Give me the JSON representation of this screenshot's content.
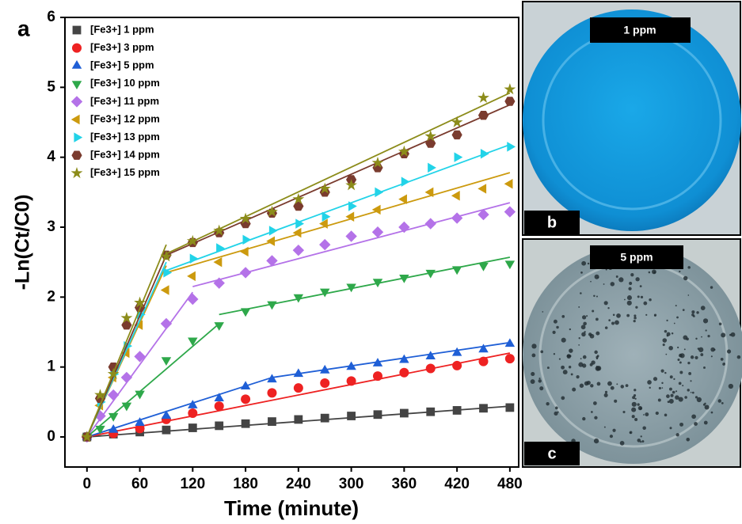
{
  "chart_data": {
    "type": "scatter",
    "panel": "a",
    "x_label": "Time (minute)",
    "y_label": "-Ln(Ct/C0)",
    "xlim": [
      -25,
      490
    ],
    "xticks": [
      0,
      60,
      120,
      180,
      240,
      300,
      360,
      420,
      480
    ],
    "ylim": [
      -0.43,
      6
    ],
    "yticks": [
      0,
      1,
      2,
      3,
      4,
      5,
      6
    ],
    "legend": "upper left",
    "series": [
      {
        "name": "[Fe3+] 1 ppm",
        "color": "#444444",
        "marker": "square",
        "x": [
          0,
          30,
          60,
          90,
          120,
          150,
          180,
          210,
          240,
          270,
          300,
          330,
          360,
          390,
          420,
          450,
          480
        ],
        "values": [
          0,
          0.04,
          0.07,
          0.1,
          0.13,
          0.16,
          0.19,
          0.22,
          0.25,
          0.27,
          0.3,
          0.32,
          0.34,
          0.36,
          0.38,
          0.41,
          0.42
        ],
        "fits": [
          {
            "x": [
              0,
              480
            ],
            "values": [
              0,
              0.44
            ]
          }
        ]
      },
      {
        "name": "[Fe3+] 3 ppm",
        "color": "#ee2222",
        "marker": "circle",
        "x": [
          0,
          30,
          60,
          90,
          120,
          150,
          180,
          210,
          240,
          270,
          300,
          330,
          360,
          390,
          420,
          450,
          480
        ],
        "values": [
          0,
          0.05,
          0.12,
          0.25,
          0.34,
          0.44,
          0.54,
          0.63,
          0.7,
          0.77,
          0.8,
          0.87,
          0.92,
          0.98,
          1.02,
          1.08,
          1.12
        ],
        "fits": [
          {
            "x": [
              0,
              480
            ],
            "values": [
              0,
              1.2
            ]
          }
        ]
      },
      {
        "name": "[Fe3+] 5 ppm",
        "color": "#1f5fd6",
        "marker": "triangle-up",
        "x": [
          0,
          30,
          60,
          90,
          120,
          150,
          180,
          210,
          240,
          270,
          300,
          330,
          360,
          390,
          420,
          450,
          480
        ],
        "values": [
          0,
          0.1,
          0.2,
          0.3,
          0.45,
          0.55,
          0.72,
          0.82,
          0.9,
          0.95,
          1.0,
          1.05,
          1.1,
          1.15,
          1.2,
          1.25,
          1.33
        ],
        "fits": [
          {
            "x": [
              0,
              210
            ],
            "values": [
              0,
              0.85
            ]
          },
          {
            "x": [
              210,
              480
            ],
            "values": [
              0.85,
              1.35
            ]
          }
        ]
      },
      {
        "name": "[Fe3+]  10 ppm",
        "color": "#2ea84a",
        "marker": "triangle-down",
        "x": [
          0,
          15,
          30,
          45,
          60,
          90,
          120,
          150,
          180,
          210,
          240,
          270,
          300,
          330,
          360,
          390,
          420,
          450,
          480
        ],
        "values": [
          0,
          0.12,
          0.3,
          0.45,
          0.62,
          1.1,
          1.38,
          1.6,
          1.8,
          1.9,
          2.0,
          2.08,
          2.15,
          2.22,
          2.28,
          2.35,
          2.4,
          2.45,
          2.48
        ],
        "fits": [
          {
            "x": [
              0,
              150
            ],
            "values": [
              0,
              1.62
            ]
          },
          {
            "x": [
              150,
              480
            ],
            "values": [
              1.75,
              2.57
            ]
          }
        ]
      },
      {
        "name": "[Fe3+]  11 ppm",
        "color": "#b472e8",
        "marker": "diamond",
        "x": [
          0,
          15,
          30,
          45,
          60,
          90,
          120,
          150,
          180,
          210,
          240,
          270,
          300,
          330,
          360,
          390,
          420,
          450,
          480
        ],
        "values": [
          0,
          0.3,
          0.6,
          0.85,
          1.15,
          1.62,
          1.97,
          2.2,
          2.35,
          2.52,
          2.67,
          2.75,
          2.87,
          2.93,
          3.0,
          3.05,
          3.13,
          3.18,
          3.22
        ],
        "fits": [
          {
            "x": [
              0,
              120
            ],
            "values": [
              0,
              2.07
            ]
          },
          {
            "x": [
              120,
              480
            ],
            "values": [
              2.15,
              3.35
            ]
          }
        ]
      },
      {
        "name": "[Fe3+] 12 ppm",
        "color": "#cc9a0e",
        "marker": "triangle-left",
        "x": [
          0,
          15,
          30,
          45,
          60,
          90,
          120,
          150,
          180,
          210,
          240,
          270,
          300,
          330,
          360,
          390,
          420,
          450,
          480
        ],
        "values": [
          0,
          0.45,
          0.85,
          1.2,
          1.6,
          2.1,
          2.3,
          2.5,
          2.65,
          2.8,
          2.92,
          3.05,
          3.15,
          3.25,
          3.4,
          3.5,
          3.45,
          3.55,
          3.62
        ],
        "fits": [
          {
            "x": [
              0,
              90
            ],
            "values": [
              0,
              2.45
            ]
          },
          {
            "x": [
              90,
              480
            ],
            "values": [
              2.35,
              3.78
            ]
          }
        ]
      },
      {
        "name": "[Fe3+] 13 ppm",
        "color": "#22d3e8",
        "marker": "triangle-right",
        "x": [
          0,
          15,
          30,
          45,
          60,
          90,
          120,
          150,
          180,
          210,
          240,
          270,
          300,
          330,
          360,
          390,
          420,
          450,
          480
        ],
        "values": [
          0,
          0.5,
          0.9,
          1.3,
          1.75,
          2.35,
          2.55,
          2.7,
          2.82,
          2.95,
          3.05,
          3.15,
          3.3,
          3.5,
          3.65,
          3.85,
          4.0,
          4.05,
          4.15
        ],
        "fits": [
          {
            "x": [
              0,
              90
            ],
            "values": [
              0,
              2.5
            ]
          },
          {
            "x": [
              90,
              480
            ],
            "values": [
              2.38,
              4.18
            ]
          }
        ]
      },
      {
        "name": "[Fe3+] 14 ppm",
        "color": "#7a3b2e",
        "marker": "hexagon",
        "x": [
          0,
          15,
          30,
          45,
          60,
          90,
          120,
          150,
          180,
          210,
          240,
          270,
          300,
          330,
          360,
          390,
          420,
          450,
          480
        ],
        "values": [
          0,
          0.55,
          1.0,
          1.6,
          1.85,
          2.6,
          2.78,
          2.92,
          3.05,
          3.2,
          3.3,
          3.5,
          3.68,
          3.85,
          4.05,
          4.2,
          4.32,
          4.6,
          4.8
        ],
        "fits": [
          {
            "x": [
              0,
              90
            ],
            "values": [
              0,
              2.6
            ]
          },
          {
            "x": [
              90,
              480
            ],
            "values": [
              2.6,
              4.75
            ]
          }
        ]
      },
      {
        "name": "[Fe3+] 15 ppm",
        "color": "#8c8c1a",
        "marker": "star",
        "x": [
          0,
          15,
          30,
          45,
          60,
          90,
          120,
          150,
          180,
          210,
          240,
          270,
          300,
          330,
          360,
          390,
          420,
          450,
          480
        ],
        "values": [
          0,
          0.6,
          0.9,
          1.7,
          1.92,
          2.58,
          2.8,
          2.95,
          3.12,
          3.22,
          3.4,
          3.55,
          3.6,
          3.92,
          4.08,
          4.3,
          4.5,
          4.85,
          4.97
        ],
        "fits": [
          {
            "x": [
              0,
              90
            ],
            "values": [
              0,
              2.75
            ]
          },
          {
            "x": [
              90,
              480
            ],
            "values": [
              2.62,
              4.92
            ]
          }
        ]
      }
    ]
  },
  "photos": [
    {
      "panel": "b",
      "label": "1 ppm"
    },
    {
      "panel": "c",
      "label": "5 ppm"
    }
  ]
}
